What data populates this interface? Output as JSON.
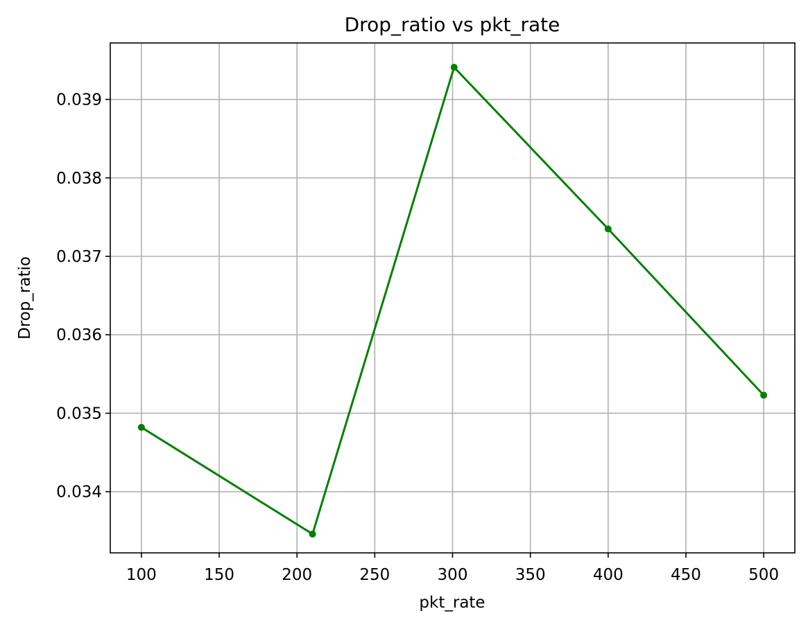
{
  "chart_data": {
    "type": "line",
    "title": "Drop_ratio vs pkt_rate",
    "xlabel": "pkt_rate",
    "ylabel": "Drop_ratio",
    "xlim": [
      80,
      520
    ],
    "ylim": [
      0.03322,
      0.03972
    ],
    "xticks": [
      100,
      150,
      200,
      250,
      300,
      350,
      400,
      450,
      500
    ],
    "xtick_labels": [
      "100",
      "150",
      "200",
      "250",
      "300",
      "350",
      "400",
      "450",
      "500"
    ],
    "yticks": [
      0.034,
      0.035,
      0.036,
      0.037,
      0.038,
      0.039
    ],
    "ytick_labels": [
      "0.034",
      "0.035",
      "0.036",
      "0.037",
      "0.038",
      "0.039"
    ],
    "grid": true,
    "series": [
      {
        "color": "#008000",
        "marker": "circle",
        "x": [
          100,
          210,
          301,
          400,
          500
        ],
        "y": [
          0.03482,
          0.03346,
          0.03941,
          0.03735,
          0.03523
        ]
      }
    ]
  }
}
